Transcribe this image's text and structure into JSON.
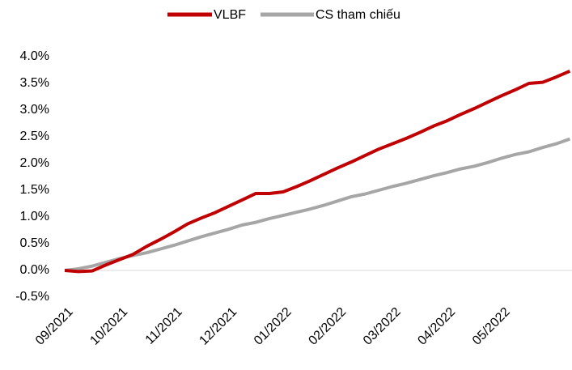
{
  "chart_data": {
    "type": "line",
    "categories": [
      "09/2021",
      null,
      null,
      null,
      "10/2021",
      null,
      null,
      null,
      "11/2021",
      null,
      null,
      null,
      "12/2021",
      null,
      null,
      null,
      "01/2022",
      null,
      null,
      null,
      "02/2022",
      null,
      null,
      null,
      "03/2022",
      null,
      null,
      null,
      "04/2022",
      null,
      null,
      null,
      "05/2022",
      null,
      null,
      null,
      null,
      null
    ],
    "series": [
      {
        "name": "VLBF",
        "color": "#c00000",
        "values": [
          0,
          -0.02,
          -0.01,
          0.1,
          0.2,
          0.3,
          0.45,
          0.58,
          0.72,
          0.87,
          0.98,
          1.08,
          1.2,
          1.32,
          1.44,
          1.44,
          1.47,
          1.57,
          1.68,
          1.8,
          1.92,
          2.03,
          2.15,
          2.27,
          2.37,
          2.47,
          2.58,
          2.7,
          2.8,
          2.92,
          3.03,
          3.15,
          3.27,
          3.38,
          3.5,
          3.52,
          3.62,
          3.73
        ]
      },
      {
        "name": "CS tham chiếu",
        "color": "#a6a6a6",
        "values": [
          0,
          0.03,
          0.08,
          0.15,
          0.22,
          0.28,
          0.33,
          0.4,
          0.47,
          0.55,
          0.63,
          0.7,
          0.77,
          0.85,
          0.9,
          0.97,
          1.03,
          1.09,
          1.15,
          1.22,
          1.3,
          1.38,
          1.43,
          1.5,
          1.57,
          1.63,
          1.7,
          1.77,
          1.83,
          1.9,
          1.95,
          2.02,
          2.1,
          2.17,
          2.22,
          2.3,
          2.37,
          2.46
        ]
      }
    ],
    "ylim": [
      -0.5,
      4.0
    ],
    "yticks": [
      {
        "value": -0.5,
        "label": "-0.5%"
      },
      {
        "value": 0,
        "label": "0.0%"
      },
      {
        "value": 0.5,
        "label": "0.5%"
      },
      {
        "value": 1,
        "label": "1.0%"
      },
      {
        "value": 1.5,
        "label": "1.5%"
      },
      {
        "value": 2,
        "label": "2.0%"
      },
      {
        "value": 2.5,
        "label": "2.5%"
      },
      {
        "value": 3,
        "label": "3.0%"
      },
      {
        "value": 3.5,
        "label": "3.5%"
      },
      {
        "value": 4,
        "label": "4.0%"
      }
    ],
    "grid": false,
    "legend": "top"
  }
}
